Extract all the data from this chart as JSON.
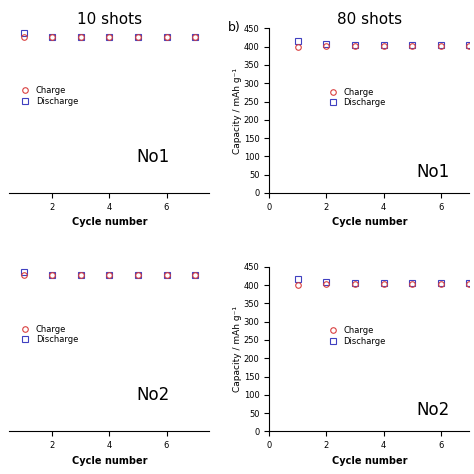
{
  "title_a": "10 shots",
  "title_b": "80 shots",
  "label_b": "b)",
  "xlabel": "Cycle number",
  "ylabel_right": "Capacity / mAh g⁻¹",
  "no1_label": "No1",
  "no2_label": "No2",
  "charge_label": "Charge",
  "discharge_label": "Discharge",
  "charge_color": "#d94040",
  "discharge_color": "#4040c0",
  "left_no1_cycles": [
    1,
    2,
    3,
    4,
    5,
    6,
    7
  ],
  "left_no1_charge": [
    95,
    95,
    95,
    95,
    95,
    95,
    95
  ],
  "left_no1_discharge": [
    97,
    95,
    95,
    95,
    95,
    95,
    95
  ],
  "left_no2_cycles": [
    1,
    2,
    3,
    4,
    5,
    6,
    7
  ],
  "left_no2_charge": [
    95,
    95,
    95,
    95,
    95,
    95,
    95
  ],
  "left_no2_discharge": [
    97,
    95,
    95,
    95,
    95,
    95,
    95
  ],
  "right_no1_cycles": [
    1,
    2,
    3,
    4,
    5,
    6,
    7
  ],
  "right_no1_charge": [
    400,
    402,
    402,
    402,
    402,
    402,
    402
  ],
  "right_no1_discharge": [
    415,
    408,
    405,
    405,
    405,
    405,
    405
  ],
  "right_no2_cycles": [
    1,
    2,
    3,
    4,
    5,
    6,
    7
  ],
  "right_no2_charge": [
    400,
    402,
    402,
    402,
    402,
    402,
    402
  ],
  "right_no2_discharge": [
    418,
    408,
    405,
    405,
    405,
    405,
    405
  ],
  "left_ylim": [
    0,
    100
  ],
  "left_yticks": [],
  "right_ylim": [
    0,
    450
  ],
  "right_yticks": [
    0,
    50,
    100,
    150,
    200,
    250,
    300,
    350,
    400,
    450
  ],
  "left_xticks": [
    2,
    4,
    6
  ],
  "right_xticks": [
    0,
    2,
    4,
    6
  ],
  "left_xlim": [
    0.5,
    7.5
  ],
  "right_xlim": [
    0,
    7
  ],
  "bg_color": "#ffffff",
  "marker_size": 4,
  "marker_lw": 0.8,
  "tick_fontsize": 6,
  "label_fontsize": 7,
  "title_fontsize": 11,
  "legend_fontsize": 6,
  "no_label_fontsize": 12
}
